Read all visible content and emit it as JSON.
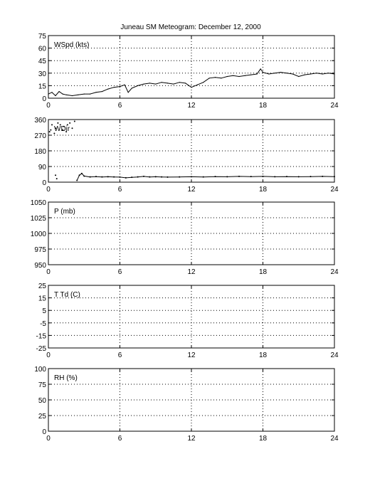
{
  "title": "Juneau SM Meteogram:   December 12, 2000",
  "chart_data": [
    {
      "type": "line",
      "label": "WSpd (kts)",
      "xlim": [
        0,
        24
      ],
      "ylim": [
        0,
        75
      ],
      "xticks": [
        0,
        6,
        12,
        18,
        24
      ],
      "yticks": [
        0,
        15,
        30,
        45,
        60,
        75
      ],
      "grid": true,
      "x": [
        0,
        0.3,
        0.6,
        0.9,
        1.2,
        1.5,
        2,
        2.5,
        3,
        3.5,
        4,
        4.5,
        5,
        5.5,
        6,
        6.4,
        6.7,
        7,
        7.5,
        8,
        8.5,
        9,
        9.5,
        10,
        10.5,
        11,
        11.5,
        12,
        12.5,
        13,
        13.5,
        14,
        14.5,
        15,
        15.5,
        16,
        16.5,
        17,
        17.5,
        17.8,
        18,
        18.5,
        19,
        19.5,
        20,
        20.5,
        21,
        21.5,
        22,
        22.5,
        23,
        23.5,
        24
      ],
      "y": [
        5,
        7,
        3,
        8,
        5,
        4,
        3,
        4,
        5,
        5,
        7,
        8,
        11,
        13,
        14,
        16,
        7,
        12,
        15,
        17,
        18,
        17,
        19,
        18,
        17,
        19,
        18,
        13,
        16,
        19,
        24,
        25,
        24,
        26,
        27,
        26,
        27,
        28,
        29,
        35,
        31,
        29,
        30,
        31,
        30,
        29,
        26,
        28,
        29,
        30,
        29,
        30,
        29
      ]
    },
    {
      "type": "scatter",
      "label": "WDir",
      "xlim": [
        0,
        24
      ],
      "ylim": [
        0,
        360
      ],
      "xticks": [
        0,
        6,
        12,
        18,
        24
      ],
      "yticks": [
        0,
        90,
        180,
        270,
        360
      ],
      "grid": true,
      "x": [
        0.1,
        0.2,
        0.3,
        0.5,
        0.6,
        0.8,
        1.0,
        1.2,
        1.3,
        1.5,
        1.6,
        1.8,
        2.0,
        2.2,
        0.6,
        0.7,
        2.4,
        2.6,
        2.8,
        3.0,
        3.5,
        4,
        4.5,
        5,
        5.5,
        6,
        6.5,
        7,
        7.5,
        8,
        8.5,
        9,
        9.5,
        10,
        11,
        12,
        13,
        14,
        15,
        16,
        17,
        18,
        19,
        20,
        21,
        22,
        23,
        24
      ],
      "y": [
        290,
        300,
        330,
        280,
        310,
        340,
        330,
        300,
        320,
        290,
        330,
        340,
        310,
        350,
        40,
        20,
        10,
        40,
        50,
        35,
        30,
        32,
        30,
        31,
        30,
        29,
        25,
        28,
        30,
        33,
        30,
        31,
        30,
        29,
        30,
        31,
        30,
        32,
        31,
        33,
        32,
        33,
        31,
        32,
        31,
        32,
        33,
        32
      ]
    },
    {
      "type": "line",
      "label": "P (mb)",
      "xlim": [
        0,
        24
      ],
      "ylim": [
        950,
        1050
      ],
      "xticks": [
        0,
        6,
        12,
        18,
        24
      ],
      "yticks": [
        950,
        975,
        1000,
        1025,
        1050
      ],
      "grid": true,
      "x": [],
      "y": []
    },
    {
      "type": "line",
      "label": "T Td (C)",
      "xlim": [
        0,
        24
      ],
      "ylim": [
        -25,
        25
      ],
      "xticks": [
        0,
        6,
        12,
        18,
        24
      ],
      "yticks": [
        -25,
        -15,
        -5,
        5,
        15,
        25
      ],
      "grid": true,
      "x": [],
      "y": []
    },
    {
      "type": "line",
      "label": "RH (%)",
      "xlim": [
        0,
        24
      ],
      "ylim": [
        0,
        100
      ],
      "xticks": [
        0,
        6,
        12,
        18,
        24
      ],
      "yticks": [
        0,
        25,
        50,
        75,
        100
      ],
      "grid": true,
      "x": [],
      "y": []
    }
  ]
}
